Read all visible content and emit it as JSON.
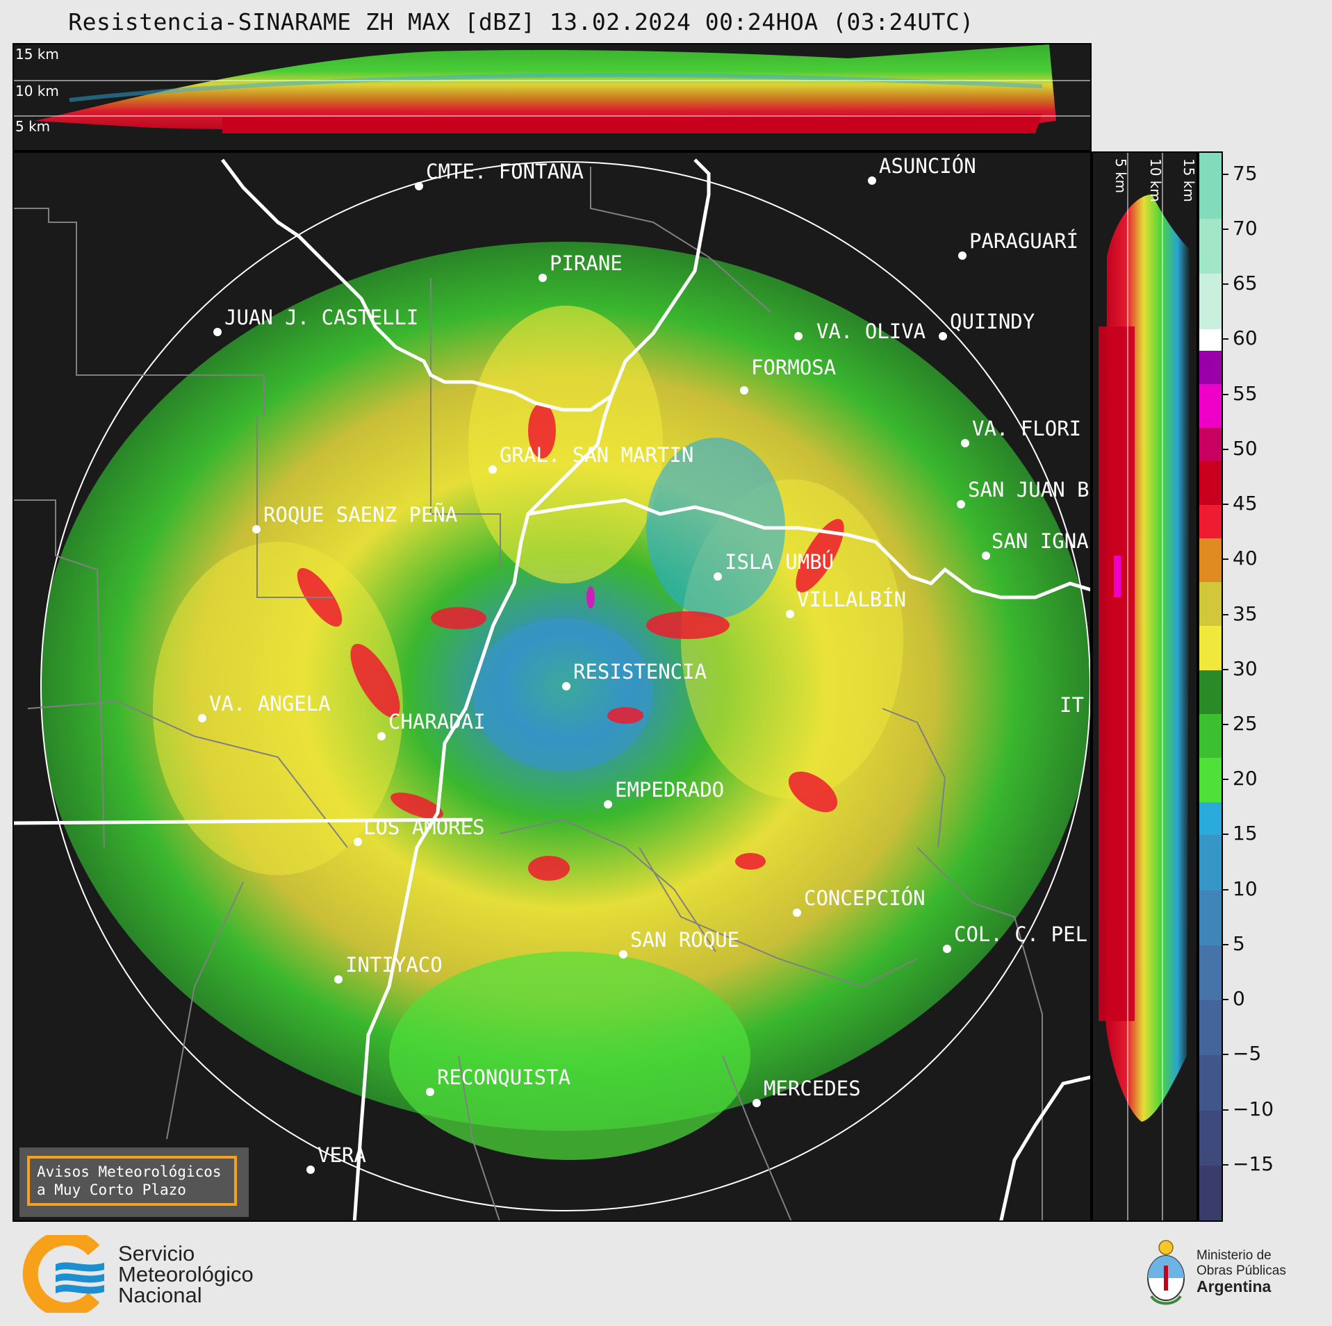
{
  "title": "Resistencia-SINARAME ZH MAX [dBZ] 13.02.2024 00:24HOA (03:24UTC)",
  "top_section": {
    "altitude_labels": [
      "15 km",
      "10 km",
      "5 km"
    ]
  },
  "side_section": {
    "altitude_labels": [
      "5 km",
      "10 km",
      "15 km"
    ]
  },
  "cities": [
    {
      "name": "CMTE. FONTANA"
    },
    {
      "name": "ASUNCIÓN"
    },
    {
      "name": "PARAGUARÍ"
    },
    {
      "name": "PIRANE"
    },
    {
      "name": "JUAN J. CASTELLI"
    },
    {
      "name": "VA. OLIVA"
    },
    {
      "name": "QUIINDY"
    },
    {
      "name": "FORMOSA"
    },
    {
      "name": "VA. FLORI"
    },
    {
      "name": "GRAL. SAN MARTIN"
    },
    {
      "name": "SAN JUAN B"
    },
    {
      "name": "ROQUE SAENZ PEÑA"
    },
    {
      "name": "SAN IGNA"
    },
    {
      "name": "ISLA UMBÚ"
    },
    {
      "name": "VILLALBÍN"
    },
    {
      "name": "RESISTENCIA"
    },
    {
      "name": "VA. ANGELA"
    },
    {
      "name": "CHARADAI"
    },
    {
      "name": "IT"
    },
    {
      "name": "EMPEDRADO"
    },
    {
      "name": "LOS AMORES"
    },
    {
      "name": "CONCEPCIÓN"
    },
    {
      "name": "COL. C. PEL"
    },
    {
      "name": "SAN ROQUE"
    },
    {
      "name": "INTIYACO"
    },
    {
      "name": "RECONQUISTA"
    },
    {
      "name": "MERCEDES"
    },
    {
      "name": "VERA"
    }
  ],
  "colorbar": {
    "unit": "dBZ",
    "range": [
      -20,
      77
    ],
    "ticks": [
      75,
      70,
      65,
      60,
      55,
      50,
      45,
      40,
      35,
      30,
      25,
      20,
      15,
      10,
      5,
      0,
      -5,
      -10,
      -15
    ],
    "tick_labels": [
      "75",
      "70",
      "65",
      "60",
      "55",
      "50",
      "45",
      "40",
      "35",
      "30",
      "25",
      "20",
      "15",
      "10",
      "5",
      "0",
      "−5",
      "−10",
      "−15"
    ],
    "colors": [
      {
        "from": -20,
        "to": -15,
        "color": "#3a3d6a"
      },
      {
        "from": -15,
        "to": -10,
        "color": "#3e4a7c"
      },
      {
        "from": -10,
        "to": -5,
        "color": "#41578c"
      },
      {
        "from": -5,
        "to": 0,
        "color": "#44659b"
      },
      {
        "from": 0,
        "to": 5,
        "color": "#4674a8"
      },
      {
        "from": 5,
        "to": 10,
        "color": "#3f85b8"
      },
      {
        "from": 10,
        "to": 15,
        "color": "#3696c6"
      },
      {
        "from": 15,
        "to": 18,
        "color": "#2aabdb"
      },
      {
        "from": 18,
        "to": 22,
        "color": "#4fe03a"
      },
      {
        "from": 22,
        "to": 26,
        "color": "#3cbf30"
      },
      {
        "from": 26,
        "to": 30,
        "color": "#2a8a28"
      },
      {
        "from": 30,
        "to": 34,
        "color": "#f0e83a"
      },
      {
        "from": 34,
        "to": 38,
        "color": "#d2c73a"
      },
      {
        "from": 38,
        "to": 42,
        "color": "#e08a22"
      },
      {
        "from": 42,
        "to": 45,
        "color": "#ee1c30"
      },
      {
        "from": 45,
        "to": 49,
        "color": "#c8001e"
      },
      {
        "from": 49,
        "to": 52,
        "color": "#c80060"
      },
      {
        "from": 52,
        "to": 56,
        "color": "#ee00c8"
      },
      {
        "from": 56,
        "to": 59,
        "color": "#9a00a8"
      },
      {
        "from": 59,
        "to": 61,
        "color": "#ffffff"
      },
      {
        "from": 61,
        "to": 66,
        "color": "#c8f0dc"
      },
      {
        "from": 66,
        "to": 71,
        "color": "#a2e6c8"
      },
      {
        "from": 71,
        "to": 77,
        "color": "#82dcbc"
      }
    ]
  },
  "warning_box": {
    "line1": "Avisos Meteorológicos",
    "line2": "a Muy Corto Plazo",
    "border_color": "#f7a11a"
  },
  "smn_logo": {
    "line1": "Servicio",
    "line2": "Meteorológico",
    "line3": "Nacional"
  },
  "ministry_logo": {
    "line1": "Ministerio de",
    "line2": "Obras Públicas",
    "line3": "Argentina"
  }
}
